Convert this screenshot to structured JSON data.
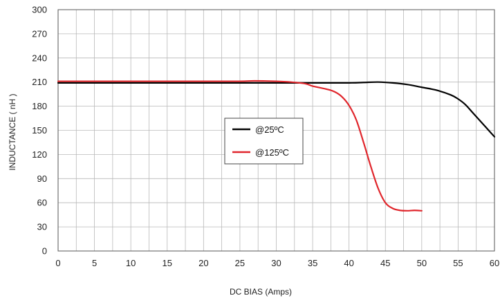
{
  "chart_data": {
    "type": "line",
    "xlabel": "DC BIAS (Amps)",
    "ylabel": "INDUCTANCE ( nH )",
    "xlim": [
      0,
      60
    ],
    "ylim": [
      0,
      300
    ],
    "xticks": [
      0,
      5,
      10,
      15,
      20,
      25,
      30,
      35,
      40,
      45,
      50,
      55,
      60
    ],
    "yticks": [
      0,
      30,
      60,
      90,
      120,
      150,
      180,
      210,
      240,
      270,
      300
    ],
    "grid": true,
    "legend_position": "center",
    "series": [
      {
        "name": "@25ºC",
        "color": "#000000",
        "points": [
          [
            0,
            209
          ],
          [
            5,
            209
          ],
          [
            10,
            209
          ],
          [
            15,
            209
          ],
          [
            20,
            209
          ],
          [
            25,
            209
          ],
          [
            30,
            209
          ],
          [
            35,
            209
          ],
          [
            40,
            209
          ],
          [
            42,
            209.5
          ],
          [
            44,
            210
          ],
          [
            46,
            209
          ],
          [
            48,
            207
          ],
          [
            50,
            203.5
          ],
          [
            52,
            200
          ],
          [
            54,
            194
          ],
          [
            55,
            189
          ],
          [
            56,
            182
          ],
          [
            57,
            172
          ],
          [
            58,
            162
          ],
          [
            59,
            152
          ],
          [
            60,
            142
          ]
        ]
      },
      {
        "name": "@125ºC",
        "color": "#e0252b",
        "points": [
          [
            0,
            211
          ],
          [
            5,
            211
          ],
          [
            10,
            211
          ],
          [
            15,
            211
          ],
          [
            20,
            211
          ],
          [
            25,
            211
          ],
          [
            27,
            211.5
          ],
          [
            30,
            211
          ],
          [
            32,
            210
          ],
          [
            34,
            208
          ],
          [
            35,
            205
          ],
          [
            37,
            201
          ],
          [
            38,
            198
          ],
          [
            39,
            192
          ],
          [
            40,
            181
          ],
          [
            41,
            163
          ],
          [
            42,
            135
          ],
          [
            43,
            105
          ],
          [
            44,
            78
          ],
          [
            45,
            60
          ],
          [
            46,
            53
          ],
          [
            47,
            50.5
          ],
          [
            48,
            50
          ],
          [
            49,
            50.5
          ],
          [
            50,
            50
          ]
        ]
      }
    ]
  }
}
